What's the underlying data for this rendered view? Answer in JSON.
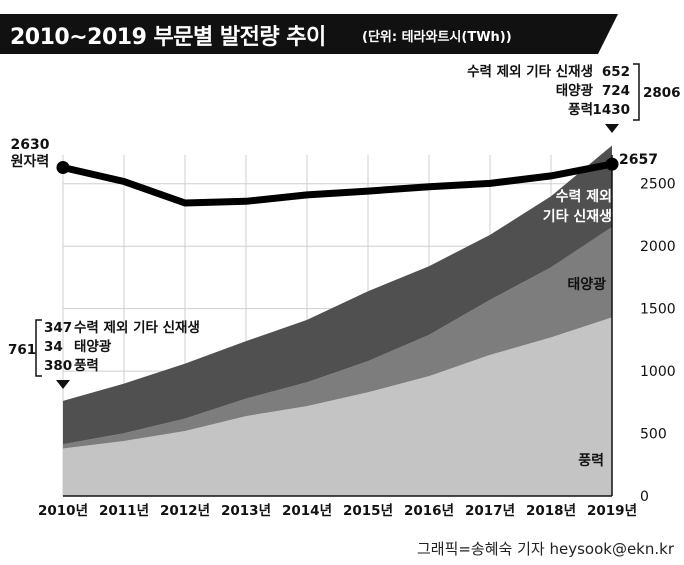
{
  "title": "2010~2019 부문별 발전량 추이",
  "unit": "(단위: 테라와트시(TWh))",
  "credit": "그래픽=송혜숙 기자 heysook@ekn.kr",
  "colors": {
    "wind": "#c4c4c4",
    "solar": "#7d7d7d",
    "hydro_other": "#505050",
    "nuclear": "#000000"
  },
  "chart_data": {
    "type": "area",
    "x": [
      "2010년",
      "2011년",
      "2012년",
      "2013년",
      "2014년",
      "2015년",
      "2016년",
      "2017년",
      "2018년",
      "2019년"
    ],
    "ylim": [
      0,
      2650
    ],
    "yticks": [
      0,
      500,
      1000,
      1500,
      2000,
      2500
    ],
    "series": [
      {
        "name": "풍력",
        "stack": true,
        "values": [
          380,
          440,
          520,
          640,
          720,
          830,
          960,
          1130,
          1270,
          1430
        ]
      },
      {
        "name": "태양광",
        "stack": true,
        "values": [
          34,
          63,
          100,
          140,
          190,
          250,
          330,
          440,
          560,
          724
        ]
      },
      {
        "name": "수력 제외 기타 신재생",
        "stack": true,
        "values": [
          347,
          397,
          440,
          460,
          500,
          560,
          550,
          520,
          570,
          652
        ]
      },
      {
        "name": "원자력",
        "stack": false,
        "values": [
          2630,
          2518,
          2346,
          2359,
          2411,
          2441,
          2476,
          2503,
          2563,
          2657
        ]
      }
    ],
    "annotations": {
      "start_nuclear_value": "2630",
      "start_nuclear_label": "원자력",
      "end_nuclear_value": "2657",
      "start_total": "761",
      "start_breakdown": [
        {
          "value": "347",
          "label": "수력 제외 기타 신재생"
        },
        {
          "value": "34",
          "label": "태양광"
        },
        {
          "value": "380",
          "label": "풍력"
        }
      ],
      "end_total": "2806",
      "end_breakdown": [
        {
          "label": "수력 제외 기타 신재생",
          "value": "652"
        },
        {
          "label": "태양광",
          "value": "724"
        },
        {
          "label": "풍력",
          "value": "1430"
        }
      ],
      "area_labels": {
        "hydro_other_line1": "수력 제외",
        "hydro_other_line2": "기타 신재생",
        "solar": "태양광",
        "wind": "풍력"
      }
    }
  }
}
